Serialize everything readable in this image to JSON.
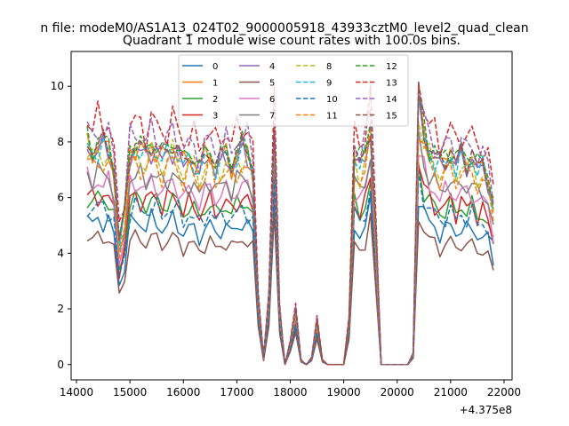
{
  "chart_data": {
    "type": "line",
    "suptitle": "n file: modeM0/AS1A13_024T02_9000005918_43933cztM0_level2_quad_clean",
    "title": "Quadrant 1 module wise count rates with 100.0s bins.",
    "xlabel": "",
    "ylabel": "",
    "x_offset_label": "+4.375e8",
    "xlim": [
      13900,
      22150
    ],
    "ylim": [
      -0.55,
      11.25
    ],
    "x_ticks": [
      14000,
      15000,
      16000,
      17000,
      18000,
      19000,
      20000,
      21000,
      22000
    ],
    "x_tick_labels": [
      "14000",
      "15000",
      "16000",
      "17000",
      "18000",
      "19000",
      "20000",
      "21000",
      "22000"
    ],
    "y_ticks": [
      0,
      2,
      4,
      6,
      8,
      10
    ],
    "y_tick_labels": [
      "0",
      "2",
      "4",
      "6",
      "8",
      "10"
    ],
    "grid": false,
    "legend_placement": "top-center",
    "legend_columns": 4,
    "x": [
      14200,
      14300,
      14400,
      14500,
      14600,
      14700,
      14800,
      14900,
      15000,
      15100,
      15200,
      15300,
      15400,
      15500,
      15600,
      15700,
      15800,
      15900,
      16000,
      16100,
      16200,
      16300,
      16400,
      16500,
      16600,
      16700,
      16800,
      16900,
      17000,
      17100,
      17200,
      17300,
      17400,
      17500,
      17600,
      17700,
      17800,
      17900,
      18000,
      18100,
      18200,
      18300,
      18400,
      18500,
      18600,
      18700,
      18800,
      18900,
      19000,
      19100,
      19200,
      19300,
      19400,
      19500,
      19600,
      19700,
      19800,
      19900,
      20000,
      20100,
      20200,
      20300,
      20400,
      20500,
      20600,
      20700,
      20800,
      20900,
      21000,
      21100,
      21200,
      21300,
      21400,
      21500,
      21600,
      21700,
      21800
    ],
    "base_profile": [
      1.0,
      0.97,
      1.0,
      0.99,
      0.98,
      0.9,
      0.55,
      0.68,
      0.97,
      1.0,
      0.97,
      0.95,
      1.0,
      0.98,
      0.93,
      0.97,
      1.0,
      0.96,
      0.9,
      0.95,
      0.93,
      0.88,
      0.93,
      0.97,
      0.9,
      0.93,
      0.95,
      0.91,
      0.95,
      0.98,
      0.96,
      0.9,
      0.3,
      0.03,
      0.3,
      1.1,
      0.25,
      0.0,
      0.1,
      0.25,
      0.02,
      0.0,
      0.03,
      0.2,
      0.02,
      0.0,
      0.0,
      0.0,
      0.0,
      0.2,
      0.95,
      0.9,
      0.95,
      1.1,
      0.6,
      0.0,
      0.0,
      0.0,
      0.0,
      0.0,
      0.0,
      0.05,
      1.18,
      1.05,
      0.98,
      0.95,
      0.9,
      0.93,
      0.97,
      0.9,
      0.95,
      0.92,
      0.95,
      0.88,
      0.9,
      0.85,
      0.72
    ],
    "series": [
      {
        "name": "0",
        "color": "#1f77b4",
        "dash": "solid",
        "level": 5.2
      },
      {
        "name": "1",
        "color": "#ff7f0e",
        "dash": "solid",
        "level": 7.9
      },
      {
        "name": "2",
        "color": "#2ca02c",
        "dash": "solid",
        "level": 6.0
      },
      {
        "name": "3",
        "color": "#d62728",
        "dash": "solid",
        "level": 6.1
      },
      {
        "name": "4",
        "color": "#9467bd",
        "dash": "solid",
        "level": 7.8
      },
      {
        "name": "5",
        "color": "#8c564b",
        "dash": "solid",
        "level": 4.6
      },
      {
        "name": "6",
        "color": "#e377c2",
        "dash": "solid",
        "level": 6.6
      },
      {
        "name": "7",
        "color": "#7f7f7f",
        "dash": "solid",
        "level": 6.9
      },
      {
        "name": "8",
        "color": "#bcbd22",
        "dash": "dashed",
        "level": 7.6
      },
      {
        "name": "9",
        "color": "#17becf",
        "dash": "dashed",
        "level": 7.8
      },
      {
        "name": "10",
        "color": "#1f77b4",
        "dash": "dashed",
        "level": 5.7
      },
      {
        "name": "11",
        "color": "#ff7f0e",
        "dash": "dashed",
        "level": 7.3
      },
      {
        "name": "12",
        "color": "#2ca02c",
        "dash": "dashed",
        "level": 8.1
      },
      {
        "name": "13",
        "color": "#d62728",
        "dash": "dashed",
        "level": 8.8
      },
      {
        "name": "14",
        "color": "#9467bd",
        "dash": "dashed",
        "level": 8.4
      },
      {
        "name": "15",
        "color": "#8c564b",
        "dash": "dashed",
        "level": 8.0
      }
    ]
  }
}
